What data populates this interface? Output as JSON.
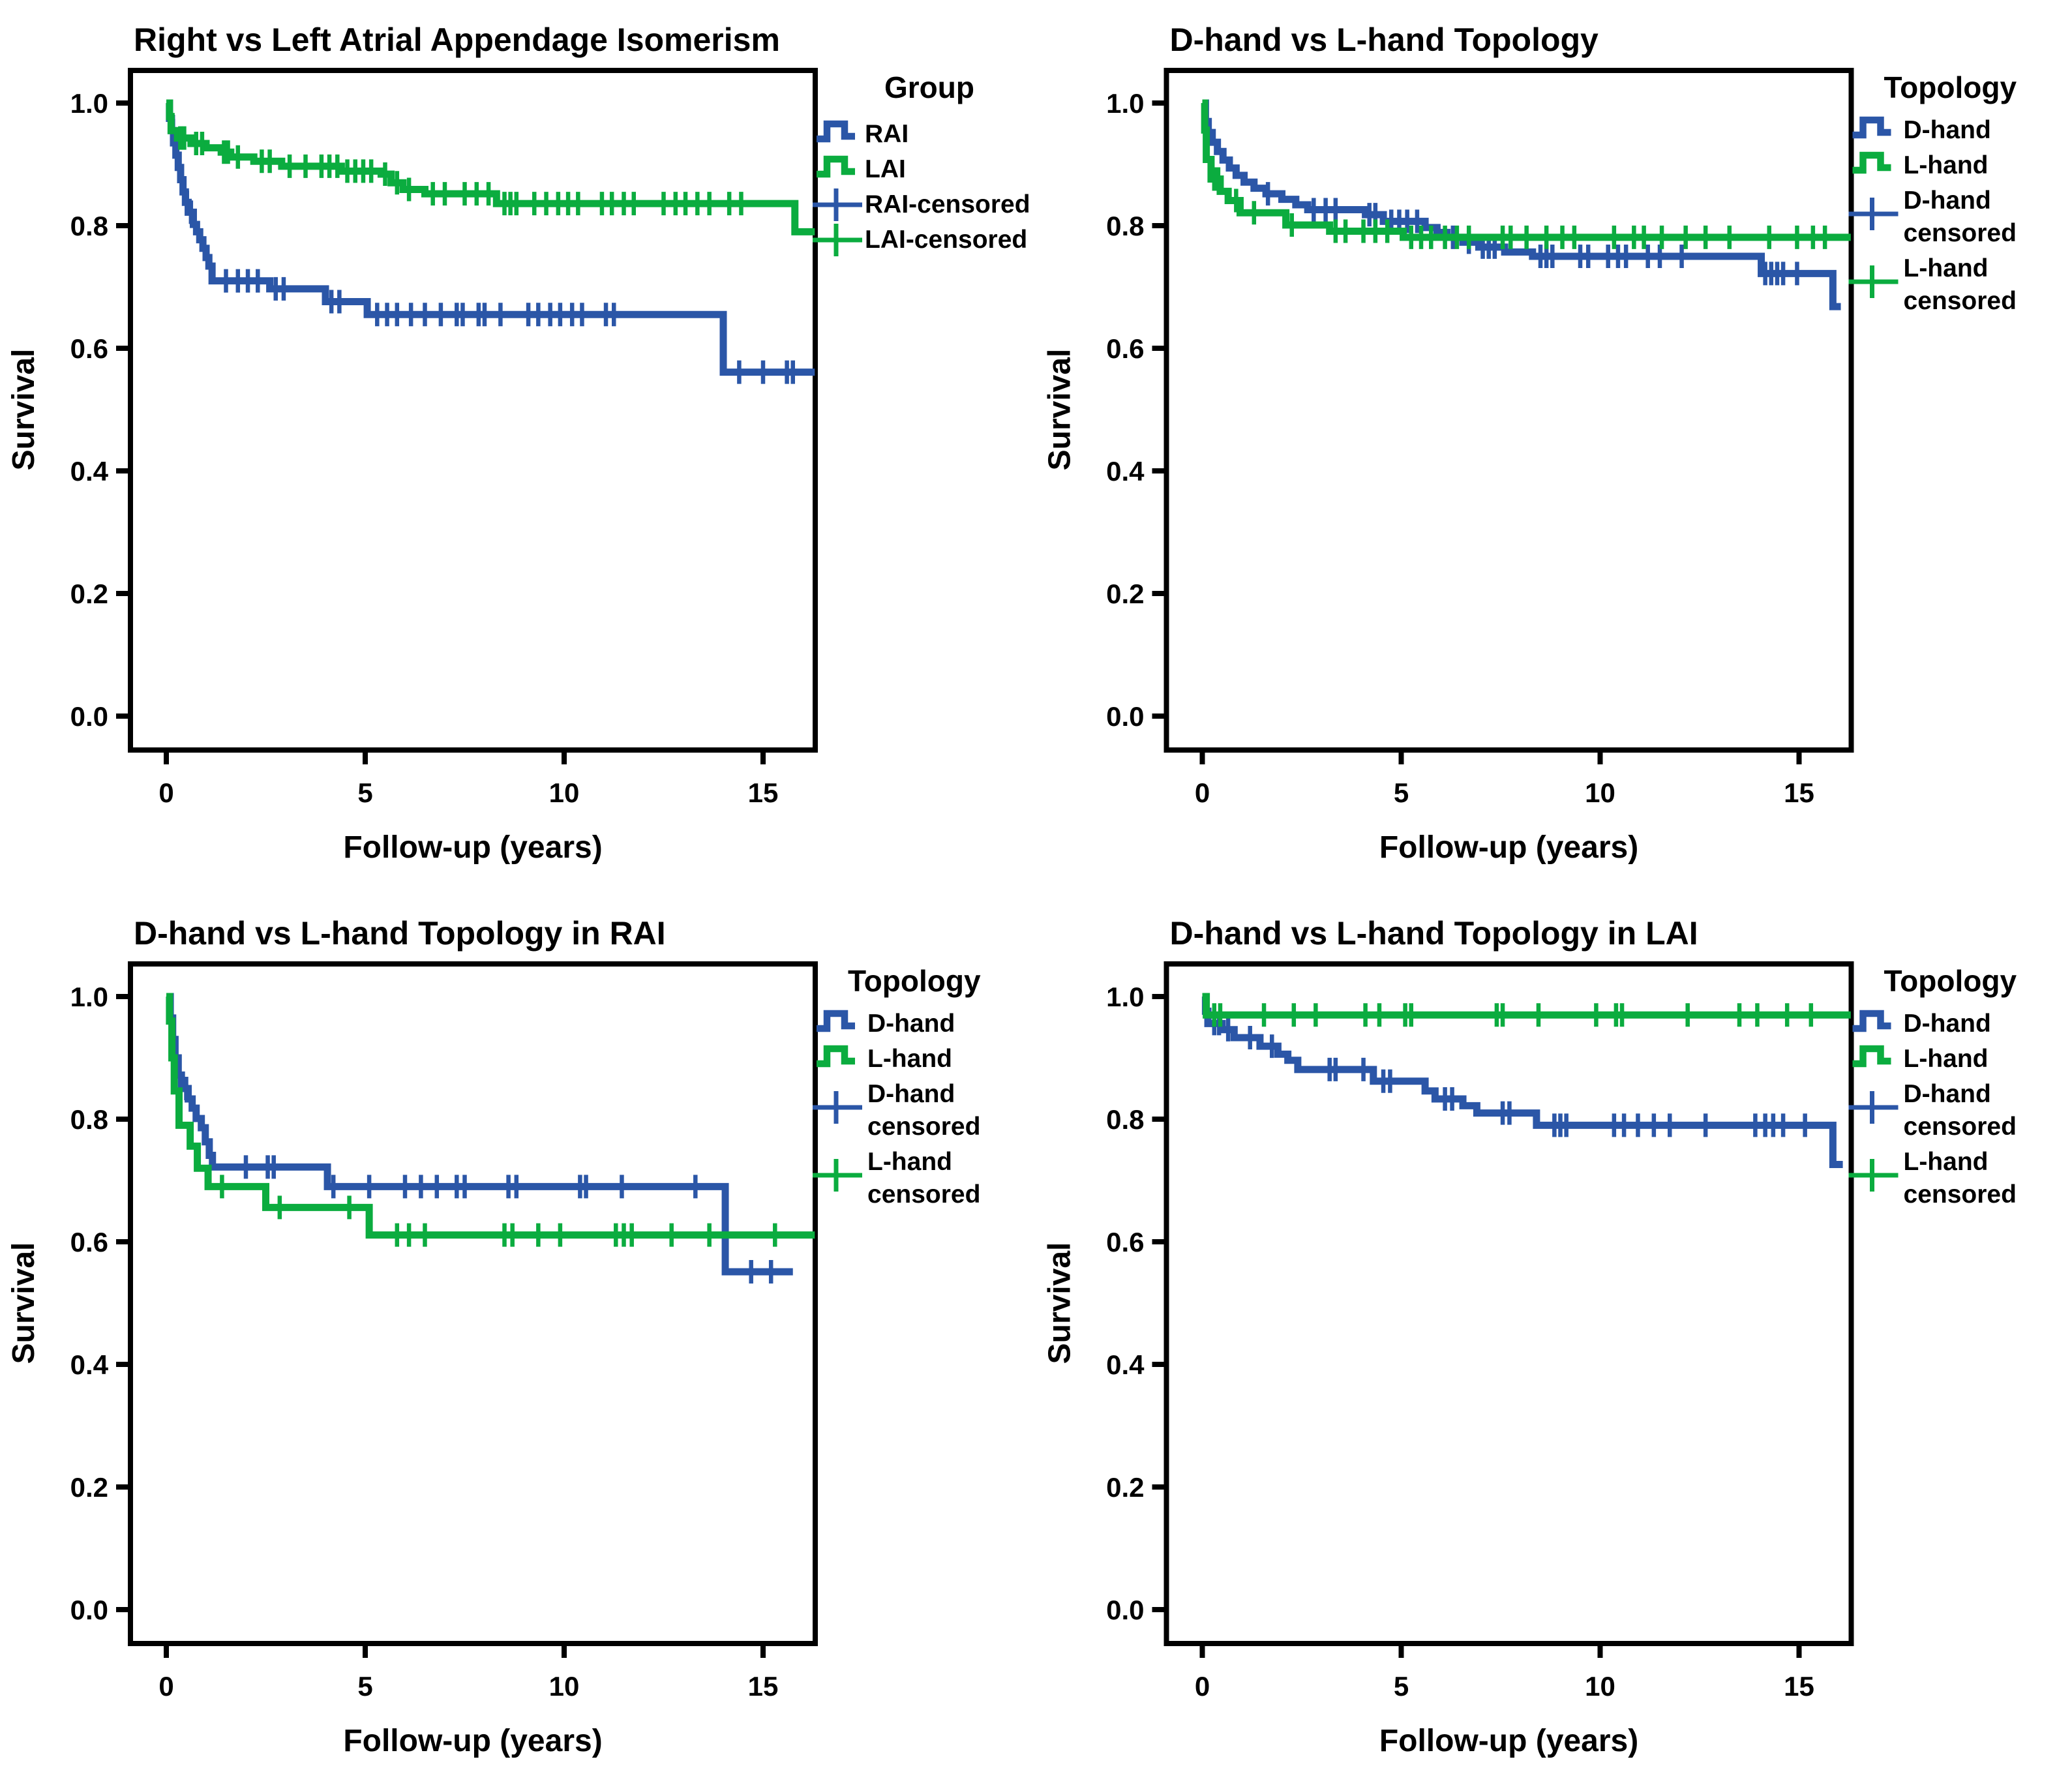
{
  "figure": {
    "background": "#ffffff",
    "description_visible_text_only": true
  },
  "colors": {
    "series_blue": "#2B56A7",
    "series_green": "#0BAC3F",
    "axis": "#000000"
  },
  "chart_data": [
    {
      "type": "line",
      "subtype": "kaplan-meier-step",
      "title": "Right vs Left Atrial Appendage Isomerism",
      "xlabel": "Follow-up (years)",
      "ylabel": "Survival",
      "xticks": [
        0,
        5,
        10,
        15
      ],
      "xticklabels": [
        "0",
        "5",
        "10",
        "15"
      ],
      "yticks": [
        0.0,
        0.2,
        0.4,
        0.6,
        0.8,
        1.0
      ],
      "yticklabels": [
        "0.0",
        "0.2",
        "0.4",
        "0.6",
        "0.8",
        "1.0"
      ],
      "xlim": [
        -0.9,
        16.35
      ],
      "ylim": [
        -0.055,
        1.055
      ],
      "grid": false,
      "legend_title": "Group",
      "legend_position": "right",
      "series": [
        {
          "name": "RAI",
          "color": "series_blue",
          "steps": [
            [
              0,
              1.0
            ],
            [
              0.08,
              0.975
            ],
            [
              0.13,
              0.955
            ],
            [
              0.18,
              0.935
            ],
            [
              0.24,
              0.915
            ],
            [
              0.3,
              0.895
            ],
            [
              0.36,
              0.875
            ],
            [
              0.42,
              0.855
            ],
            [
              0.48,
              0.838
            ],
            [
              0.55,
              0.822
            ],
            [
              0.68,
              0.802
            ],
            [
              0.76,
              0.79
            ],
            [
              0.84,
              0.777
            ],
            [
              0.92,
              0.763
            ],
            [
              1.0,
              0.748
            ],
            [
              1.07,
              0.734
            ],
            [
              1.15,
              0.71
            ],
            [
              2.6,
              0.697
            ],
            [
              4.0,
              0.676
            ],
            [
              5.05,
              0.655
            ],
            [
              14.0,
              0.561
            ]
          ],
          "end": 16.3,
          "censored": [
            0.17,
            0.52,
            0.62,
            1.5,
            1.8,
            2.05,
            2.3,
            2.75,
            2.95,
            4.15,
            4.35,
            5.3,
            5.55,
            5.8,
            6.15,
            6.5,
            6.9,
            7.3,
            7.45,
            7.85,
            8.0,
            8.4,
            9.1,
            9.35,
            9.65,
            9.9,
            10.2,
            10.45,
            11.05,
            11.25,
            14.4,
            15.0,
            15.6,
            15.75
          ]
        },
        {
          "name": "LAI",
          "color": "series_green",
          "steps": [
            [
              0,
              1.0
            ],
            [
              0.08,
              0.978
            ],
            [
              0.12,
              0.955
            ],
            [
              0.28,
              0.943
            ],
            [
              0.62,
              0.934
            ],
            [
              1.0,
              0.927
            ],
            [
              1.38,
              0.92
            ],
            [
              1.62,
              0.912
            ],
            [
              2.2,
              0.905
            ],
            [
              2.9,
              0.897
            ],
            [
              4.4,
              0.889
            ],
            [
              5.4,
              0.884
            ],
            [
              5.65,
              0.87
            ],
            [
              5.95,
              0.859
            ],
            [
              6.5,
              0.852
            ],
            [
              8.3,
              0.836
            ],
            [
              15.8,
              0.79
            ]
          ],
          "end": 16.3,
          "censored": [
            0.35,
            0.45,
            0.75,
            0.9,
            1.45,
            1.55,
            1.8,
            2.4,
            2.6,
            3.1,
            3.5,
            3.9,
            4.1,
            4.3,
            4.55,
            4.75,
            4.95,
            5.15,
            5.5,
            5.8,
            6.1,
            6.7,
            7.0,
            7.5,
            7.8,
            8.1,
            8.5,
            8.65,
            8.8,
            9.25,
            9.55,
            9.85,
            10.1,
            10.35,
            10.95,
            11.2,
            11.5,
            11.75,
            12.5,
            12.8,
            13.05,
            13.35,
            13.65,
            14.15,
            14.45
          ]
        }
      ],
      "legend": [
        {
          "kind": "line",
          "color": "series_blue",
          "lines": [
            "RAI"
          ]
        },
        {
          "kind": "line",
          "color": "series_green",
          "lines": [
            "LAI"
          ]
        },
        {
          "kind": "plus",
          "color": "series_blue",
          "lines": [
            "RAI-censored"
          ]
        },
        {
          "kind": "plus",
          "color": "series_green",
          "lines": [
            "LAI-censored"
          ]
        }
      ]
    },
    {
      "type": "line",
      "subtype": "kaplan-meier-step",
      "title": "D-hand vs L-hand Topology",
      "xlabel": "Follow-up (years)",
      "ylabel": "Survival",
      "xticks": [
        0,
        5,
        10,
        15
      ],
      "xticklabels": [
        "0",
        "5",
        "10",
        "15"
      ],
      "yticks": [
        0.0,
        0.2,
        0.4,
        0.6,
        0.8,
        1.0
      ],
      "yticklabels": [
        "0.0",
        "0.2",
        "0.4",
        "0.6",
        "0.8",
        "1.0"
      ],
      "xlim": [
        -0.9,
        16.35
      ],
      "ylim": [
        -0.055,
        1.055
      ],
      "grid": false,
      "legend_title": "Topology",
      "legend_position": "right",
      "series": [
        {
          "name": "D-hand",
          "color": "series_blue",
          "steps": [
            [
              0,
              1.0
            ],
            [
              0.08,
              0.97
            ],
            [
              0.15,
              0.952
            ],
            [
              0.25,
              0.936
            ],
            [
              0.38,
              0.921
            ],
            [
              0.52,
              0.907
            ],
            [
              0.68,
              0.894
            ],
            [
              0.85,
              0.882
            ],
            [
              1.05,
              0.871
            ],
            [
              1.3,
              0.861
            ],
            [
              1.6,
              0.852
            ],
            [
              2.0,
              0.843
            ],
            [
              2.35,
              0.834
            ],
            [
              2.65,
              0.826
            ],
            [
              4.1,
              0.818
            ],
            [
              4.55,
              0.807
            ],
            [
              5.6,
              0.797
            ],
            [
              5.9,
              0.789
            ],
            [
              6.15,
              0.781
            ],
            [
              6.55,
              0.773
            ],
            [
              6.95,
              0.765
            ],
            [
              7.6,
              0.757
            ],
            [
              8.3,
              0.75
            ],
            [
              14.05,
              0.722
            ],
            [
              15.85,
              0.668
            ]
          ],
          "end": 16.05,
          "censored": [
            1.65,
            2.8,
            3.1,
            3.35,
            4.2,
            4.35,
            4.75,
            4.95,
            5.15,
            5.4,
            6.3,
            6.7,
            7.05,
            7.2,
            7.35,
            8.5,
            8.65,
            8.8,
            9.5,
            9.7,
            10.2,
            10.45,
            10.65,
            11.2,
            11.5,
            12.05,
            14.15,
            14.3,
            14.45,
            14.6,
            14.95
          ]
        },
        {
          "name": "L-hand",
          "color": "series_green",
          "steps": [
            [
              0,
              1.0
            ],
            [
              0.06,
              0.956
            ],
            [
              0.1,
              0.908
            ],
            [
              0.22,
              0.876
            ],
            [
              0.45,
              0.856
            ],
            [
              0.65,
              0.841
            ],
            [
              0.95,
              0.821
            ],
            [
              2.1,
              0.801
            ],
            [
              3.2,
              0.791
            ],
            [
              5.05,
              0.781
            ]
          ],
          "end": 16.3,
          "censored": [
            0.3,
            0.4,
            0.85,
            1.3,
            2.25,
            3.35,
            3.6,
            4.05,
            4.35,
            4.65,
            5.25,
            5.5,
            5.75,
            6.1,
            6.4,
            6.7,
            7.55,
            7.75,
            8.15,
            8.65,
            9.05,
            9.35,
            10.35,
            10.85,
            11.1,
            11.55,
            12.15,
            12.65,
            13.25,
            14.25,
            14.95,
            15.35,
            15.65
          ]
        }
      ],
      "legend": [
        {
          "kind": "line",
          "color": "series_blue",
          "lines": [
            "D-hand"
          ]
        },
        {
          "kind": "line",
          "color": "series_green",
          "lines": [
            "L-hand"
          ]
        },
        {
          "kind": "plus",
          "color": "series_blue",
          "lines": [
            "D-hand",
            "censored"
          ]
        },
        {
          "kind": "plus",
          "color": "series_green",
          "lines": [
            "L-hand",
            "censored"
          ]
        }
      ]
    },
    {
      "type": "line",
      "subtype": "kaplan-meier-step",
      "title": "D-hand vs L-hand Topology in RAI",
      "xlabel": "Follow-up (years)",
      "ylabel": "Survival",
      "xticks": [
        0,
        5,
        10,
        15
      ],
      "xticklabels": [
        "0",
        "5",
        "10",
        "15"
      ],
      "yticks": [
        0.0,
        0.2,
        0.4,
        0.6,
        0.8,
        1.0
      ],
      "yticklabels": [
        "0.0",
        "0.2",
        "0.4",
        "0.6",
        "0.8",
        "1.0"
      ],
      "xlim": [
        -0.9,
        16.35
      ],
      "ylim": [
        -0.055,
        1.055
      ],
      "grid": false,
      "legend_title": "Topology",
      "legend_position": "right",
      "series": [
        {
          "name": "D-hand",
          "color": "series_blue",
          "steps": [
            [
              0,
              1.0
            ],
            [
              0.1,
              0.965
            ],
            [
              0.16,
              0.93
            ],
            [
              0.22,
              0.9
            ],
            [
              0.3,
              0.872
            ],
            [
              0.38,
              0.85
            ],
            [
              0.55,
              0.833
            ],
            [
              0.65,
              0.818
            ],
            [
              0.75,
              0.801
            ],
            [
              0.88,
              0.786
            ],
            [
              0.98,
              0.763
            ],
            [
              1.08,
              0.741
            ],
            [
              1.16,
              0.722
            ],
            [
              4.05,
              0.69
            ],
            [
              14.05,
              0.551
            ]
          ],
          "end": 15.75,
          "censored": [
            0.5,
            2.0,
            2.55,
            2.7,
            4.2,
            5.1,
            6.0,
            6.4,
            6.8,
            7.3,
            7.5,
            8.6,
            8.8,
            10.4,
            10.55,
            11.45,
            13.3,
            14.7,
            15.2
          ]
        },
        {
          "name": "L-hand",
          "color": "series_green",
          "steps": [
            [
              0,
              1.0
            ],
            [
              0.08,
              0.96
            ],
            [
              0.14,
              0.9
            ],
            [
              0.2,
              0.846
            ],
            [
              0.32,
              0.79
            ],
            [
              0.6,
              0.756
            ],
            [
              0.78,
              0.72
            ],
            [
              1.05,
              0.69
            ],
            [
              2.5,
              0.656
            ],
            [
              5.1,
              0.611
            ]
          ],
          "end": 16.3,
          "censored": [
            1.4,
            2.85,
            4.6,
            5.8,
            6.1,
            6.5,
            8.5,
            8.7,
            9.35,
            9.9,
            11.3,
            11.5,
            11.7,
            12.7,
            13.65,
            15.3
          ]
        }
      ],
      "legend": [
        {
          "kind": "line",
          "color": "series_blue",
          "lines": [
            "D-hand"
          ]
        },
        {
          "kind": "line",
          "color": "series_green",
          "lines": [
            "L-hand"
          ]
        },
        {
          "kind": "plus",
          "color": "series_blue",
          "lines": [
            "D-hand",
            "censored"
          ]
        },
        {
          "kind": "plus",
          "color": "series_green",
          "lines": [
            "L-hand",
            "censored"
          ]
        }
      ]
    },
    {
      "type": "line",
      "subtype": "kaplan-meier-step",
      "title": "D-hand vs L-hand Topology in LAI",
      "xlabel": "Follow-up (years)",
      "ylabel": "Survival",
      "xticks": [
        0,
        5,
        10,
        15
      ],
      "xticklabels": [
        "0",
        "5",
        "10",
        "15"
      ],
      "yticks": [
        0.0,
        0.2,
        0.4,
        0.6,
        0.8,
        1.0
      ],
      "yticklabels": [
        "0.0",
        "0.2",
        "0.4",
        "0.6",
        "0.8",
        "1.0"
      ],
      "xlim": [
        -0.9,
        16.35
      ],
      "ylim": [
        -0.055,
        1.055
      ],
      "grid": false,
      "legend_title": "Topology",
      "legend_position": "right",
      "series": [
        {
          "name": "D-hand",
          "color": "series_blue",
          "steps": [
            [
              0,
              1.0
            ],
            [
              0.08,
              0.976
            ],
            [
              0.14,
              0.956
            ],
            [
              0.5,
              0.946
            ],
            [
              0.8,
              0.933
            ],
            [
              1.45,
              0.919
            ],
            [
              1.9,
              0.906
            ],
            [
              2.15,
              0.896
            ],
            [
              2.4,
              0.881
            ],
            [
              4.3,
              0.862
            ],
            [
              5.6,
              0.846
            ],
            [
              5.85,
              0.833
            ],
            [
              6.55,
              0.822
            ],
            [
              6.9,
              0.81
            ],
            [
              8.4,
              0.79
            ],
            [
              15.85,
              0.726
            ]
          ],
          "end": 16.1,
          "censored": [
            0.3,
            0.42,
            0.65,
            1.2,
            1.75,
            3.2,
            3.35,
            4.05,
            4.55,
            4.72,
            6.1,
            6.28,
            7.55,
            7.72,
            8.85,
            9.0,
            9.15,
            10.35,
            10.6,
            10.95,
            11.35,
            11.75,
            12.65,
            13.9,
            14.15,
            14.35,
            14.6,
            15.15
          ]
        },
        {
          "name": "L-hand",
          "color": "series_green",
          "steps": [
            [
              0,
              1.0
            ],
            [
              0.1,
              0.97
            ]
          ],
          "end": 16.3,
          "censored": [
            0.3,
            0.45,
            1.55,
            2.3,
            2.85,
            4.1,
            4.45,
            5.1,
            5.25,
            7.4,
            7.55,
            8.45,
            9.9,
            10.4,
            10.55,
            12.2,
            13.5,
            13.95,
            14.7,
            15.3
          ]
        }
      ],
      "legend": [
        {
          "kind": "line",
          "color": "series_blue",
          "lines": [
            "D-hand"
          ]
        },
        {
          "kind": "line",
          "color": "series_green",
          "lines": [
            "L-hand"
          ]
        },
        {
          "kind": "plus",
          "color": "series_blue",
          "lines": [
            "D-hand",
            "censored"
          ]
        },
        {
          "kind": "plus",
          "color": "series_green",
          "lines": [
            "L-hand",
            "censored"
          ]
        }
      ]
    }
  ]
}
